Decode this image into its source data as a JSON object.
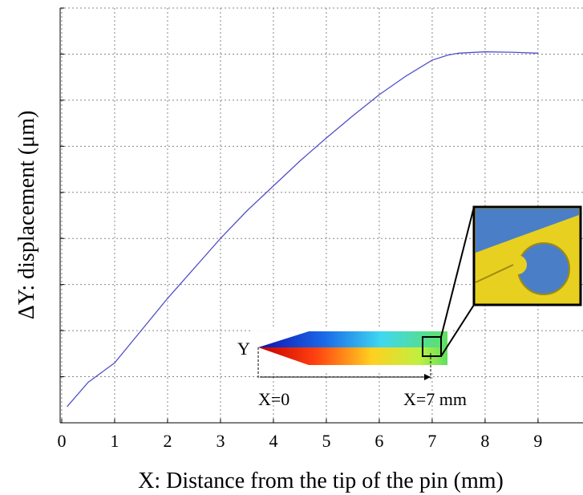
{
  "chart_data": {
    "type": "line",
    "xlabel": "X: Distance from the tip of the pin (mm)",
    "ylabel": "ΔY: displacement (μm)",
    "x": [
      0.1,
      0.5,
      1,
      1.5,
      2,
      2.5,
      3,
      3.5,
      4,
      4.5,
      5,
      5.5,
      6,
      6.5,
      7,
      7.3,
      7.5,
      8,
      8.5,
      9
    ],
    "series": [
      {
        "color": "#5050c8",
        "values": [
          0.35,
          0.88,
          1.3,
          2.0,
          2.7,
          3.35,
          4.0,
          4.6,
          5.14,
          5.68,
          6.18,
          6.66,
          7.12,
          7.52,
          7.87,
          7.98,
          8.02,
          8.05,
          8.04,
          8.02
        ]
      }
    ],
    "xlim": [
      -0.03,
      9.85
    ],
    "xticks": [
      0,
      1,
      2,
      3,
      4,
      5,
      6,
      7,
      8,
      9
    ],
    "ylim": [
      0,
      9
    ],
    "yticks": [
      0,
      1,
      2,
      3,
      4,
      5,
      6,
      7,
      8,
      9
    ],
    "y_tick_labels": false,
    "grid": true,
    "annotations": {
      "y_marker": "Y",
      "x_start": "X=0",
      "x_end": "X=7 mm"
    }
  }
}
